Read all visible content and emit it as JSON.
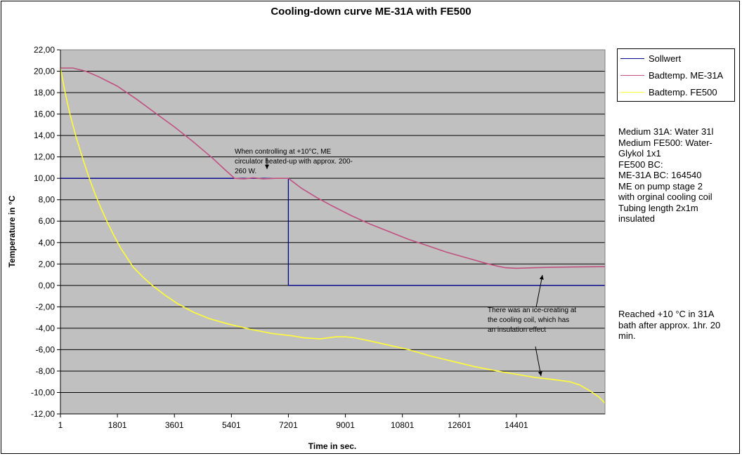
{
  "chart_data": {
    "type": "line",
    "title": "Cooling-down curve ME-31A with FE500",
    "xlabel": "Time in sec.",
    "ylabel": "Temperature in °C",
    "xlim": [
      1,
      17200
    ],
    "ylim": [
      -12,
      22
    ],
    "y_ticks": [
      "22,00",
      "20,00",
      "18,00",
      "16,00",
      "14,00",
      "12,00",
      "10,00",
      "8,00",
      "6,00",
      "4,00",
      "2,00",
      "0,00",
      "-2,00",
      "-4,00",
      "-6,00",
      "-8,00",
      "-10,00",
      "-12,00"
    ],
    "x_ticks": [
      "1",
      "1801",
      "3601",
      "5401",
      "7201",
      "9001",
      "10801",
      "12601",
      "14401"
    ],
    "x_tick_values": [
      1,
      1801,
      3601,
      5401,
      7201,
      9001,
      10801,
      12601,
      14401
    ],
    "grid": "horizontal",
    "plot_background": "#c0c0c0",
    "legend_position": "top-right",
    "series": [
      {
        "name": "Sollwert",
        "color": "#00008b",
        "points": [
          [
            1,
            10
          ],
          [
            7200,
            10
          ],
          [
            7200,
            0
          ],
          [
            17200,
            0
          ]
        ]
      },
      {
        "name": "Badtemp. ME-31A",
        "color": "#c05080",
        "points": [
          [
            1,
            20.3
          ],
          [
            400,
            20.3
          ],
          [
            800,
            20.0
          ],
          [
            1200,
            19.5
          ],
          [
            1800,
            18.6
          ],
          [
            2400,
            17.4
          ],
          [
            3000,
            16.1
          ],
          [
            3600,
            14.8
          ],
          [
            4200,
            13.4
          ],
          [
            4800,
            11.9
          ],
          [
            5200,
            10.8
          ],
          [
            5500,
            10.0
          ],
          [
            5800,
            9.95
          ],
          [
            6100,
            10.05
          ],
          [
            6400,
            9.95
          ],
          [
            6800,
            10.0
          ],
          [
            7200,
            10.0
          ],
          [
            7600,
            9.1
          ],
          [
            8100,
            8.2
          ],
          [
            8600,
            7.4
          ],
          [
            9200,
            6.5
          ],
          [
            9800,
            5.7
          ],
          [
            10400,
            5.0
          ],
          [
            11000,
            4.3
          ],
          [
            11600,
            3.7
          ],
          [
            12200,
            3.1
          ],
          [
            12800,
            2.6
          ],
          [
            13400,
            2.1
          ],
          [
            13800,
            1.8
          ],
          [
            14050,
            1.65
          ],
          [
            14400,
            1.6
          ],
          [
            15000,
            1.65
          ],
          [
            15600,
            1.7
          ],
          [
            16200,
            1.72
          ],
          [
            17200,
            1.75
          ]
        ]
      },
      {
        "name": "Badtemp. FE500",
        "color": "#ffff33",
        "points": [
          [
            1,
            20.3
          ],
          [
            150,
            18.0
          ],
          [
            300,
            16.0
          ],
          [
            500,
            13.8
          ],
          [
            700,
            11.9
          ],
          [
            900,
            10.1
          ],
          [
            1100,
            8.5
          ],
          [
            1300,
            7.1
          ],
          [
            1500,
            5.8
          ],
          [
            1700,
            4.6
          ],
          [
            1900,
            3.5
          ],
          [
            2100,
            2.6
          ],
          [
            2300,
            1.7
          ],
          [
            2600,
            0.8
          ],
          [
            2900,
            0.0
          ],
          [
            3300,
            -0.9
          ],
          [
            3700,
            -1.7
          ],
          [
            4200,
            -2.5
          ],
          [
            4700,
            -3.1
          ],
          [
            5300,
            -3.6
          ],
          [
            6000,
            -4.1
          ],
          [
            6700,
            -4.5
          ],
          [
            7300,
            -4.7
          ],
          [
            7700,
            -4.9
          ],
          [
            8200,
            -5.0
          ],
          [
            8700,
            -4.8
          ],
          [
            9000,
            -4.8
          ],
          [
            9300,
            -4.9
          ],
          [
            9800,
            -5.2
          ],
          [
            10400,
            -5.6
          ],
          [
            11000,
            -6.0
          ],
          [
            11700,
            -6.6
          ],
          [
            12400,
            -7.1
          ],
          [
            13100,
            -7.6
          ],
          [
            13800,
            -8.0
          ],
          [
            14400,
            -8.3
          ],
          [
            15000,
            -8.6
          ],
          [
            15600,
            -8.8
          ],
          [
            16100,
            -9.0
          ],
          [
            16400,
            -9.3
          ],
          [
            16700,
            -9.8
          ],
          [
            17000,
            -10.4
          ],
          [
            17200,
            -11.0
          ]
        ]
      }
    ],
    "annotations": [
      {
        "lines": [
          "When controlling at  +10°C, ME",
          "circulator heated-up with approx. 200-",
          "260 W."
        ]
      },
      {
        "lines": [
          "There was an ice-creating at",
          "the cooling coil, which has",
          "an insulation effect"
        ]
      }
    ]
  },
  "side_notes": {
    "medium_block": [
      "Medium 31A: Water 31l",
      "Medium FE500: Water-",
      "Glykol 1x1",
      "FE500 BC:",
      "ME-31A BC: 164540",
      "ME on pump stage 2",
      "with orginal cooling coil",
      "Tubing length 2x1m",
      "insulated"
    ],
    "result_block": [
      "Reached +10 °C in 31A",
      "bath after approx. 1hr. 20",
      "min."
    ]
  }
}
